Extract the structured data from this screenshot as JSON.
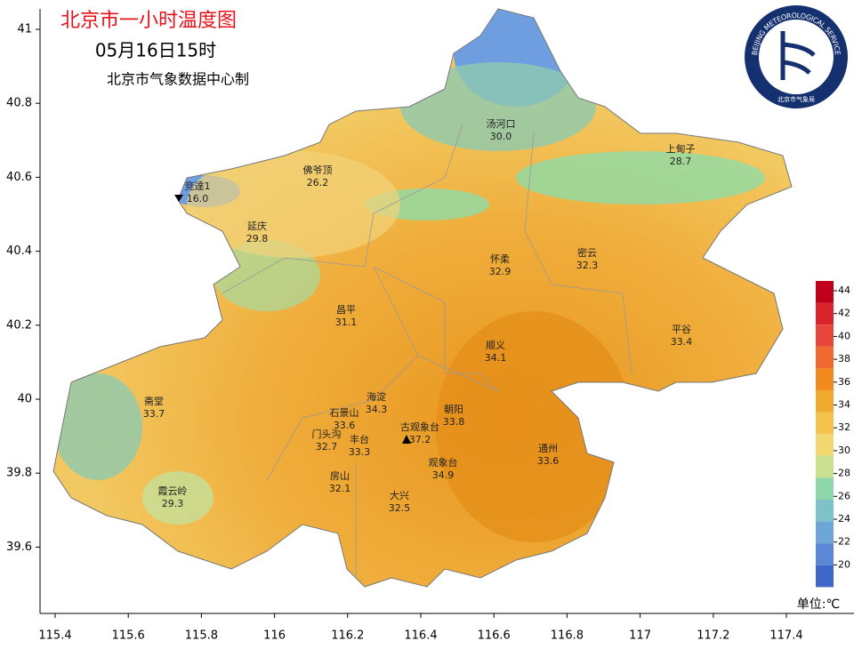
{
  "header": {
    "title": "北京市一小时温度图",
    "time": "05月16日15时",
    "source": "北京市气象数据中心制"
  },
  "logo": {
    "ring_text": "BEIJING METEOROLOGICAL SERVICE",
    "name": "北京市气象局"
  },
  "axes": {
    "lat_ticks": [
      41,
      40.8,
      40.6,
      40.4,
      40.2,
      40,
      39.8,
      39.6
    ],
    "lon_ticks": [
      115.4,
      115.6,
      115.8,
      116,
      116.2,
      116.4,
      116.6,
      116.8,
      117,
      117.2,
      117.4
    ]
  },
  "stations": [
    {
      "name": "汤河口",
      "temp": "30.0"
    },
    {
      "name": "上甸子",
      "temp": "28.7"
    },
    {
      "name": "佛爷顶",
      "temp": "26.2"
    },
    {
      "name": "竞達1",
      "temp": "16.0"
    },
    {
      "name": "延庆",
      "temp": "29.8"
    },
    {
      "name": "怀柔",
      "temp": "32.9"
    },
    {
      "name": "密云",
      "temp": "32.3"
    },
    {
      "name": "昌平",
      "temp": "31.1"
    },
    {
      "name": "平谷",
      "temp": "33.4"
    },
    {
      "name": "顺义",
      "temp": "34.1"
    },
    {
      "name": "斋堂",
      "temp": "33.7"
    },
    {
      "name": "海淀",
      "temp": "34.3"
    },
    {
      "name": "石景山",
      "temp": "33.6"
    },
    {
      "name": "朝阳",
      "temp": "33.8"
    },
    {
      "name": "古观象台",
      "temp": "37.2"
    },
    {
      "name": "门头沟",
      "temp": "32.7"
    },
    {
      "name": "丰台",
      "temp": "33.3"
    },
    {
      "name": "通州",
      "temp": "33.6"
    },
    {
      "name": "观象台",
      "temp": "34.9"
    },
    {
      "name": "房山",
      "temp": "32.1"
    },
    {
      "name": "霞云岭",
      "temp": "29.3"
    },
    {
      "name": "大兴",
      "temp": "32.5"
    }
  ],
  "legend": {
    "ticks": [
      44,
      42,
      40,
      38,
      36,
      34,
      32,
      30,
      28,
      26,
      24,
      22,
      20
    ],
    "unit": "单位:℃"
  }
}
